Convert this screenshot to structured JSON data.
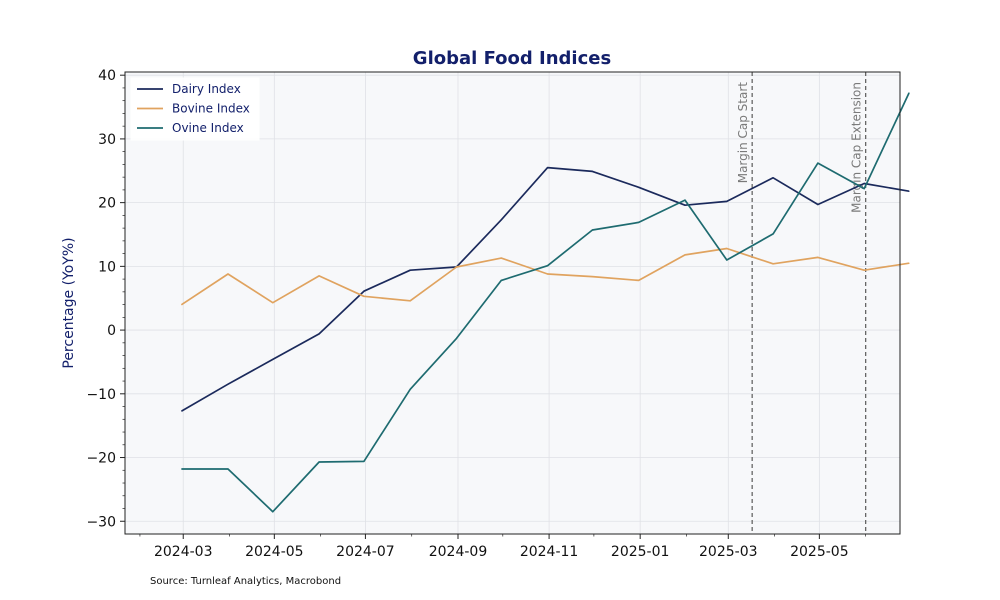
{
  "chart_data": {
    "type": "line",
    "title": "Global Food Indices",
    "xlabel": "",
    "ylabel": "Percentage (YoY%)",
    "x": [
      "2024-02",
      "2024-03",
      "2024-04",
      "2024-05",
      "2024-06",
      "2024-07",
      "2024-08",
      "2024-09",
      "2024-10",
      "2024-11",
      "2024-12",
      "2025-01",
      "2025-02",
      "2025-03",
      "2025-04",
      "2025-05",
      "2025-06"
    ],
    "series": [
      {
        "name": "Dairy Index",
        "color": "#1b2a5c",
        "values": [
          -12.7,
          -8.5,
          -4.6,
          -0.6,
          6.1,
          9.4,
          9.9,
          17.3,
          25.5,
          24.9,
          22.4,
          19.6,
          20.2,
          23.9,
          19.7,
          23.0,
          21.8
        ]
      },
      {
        "name": "Bovine Index",
        "color": "#e0a35f",
        "values": [
          4.0,
          8.8,
          4.3,
          8.5,
          5.3,
          4.6,
          9.9,
          11.3,
          8.8,
          8.4,
          7.8,
          11.8,
          12.8,
          10.4,
          11.4,
          9.4,
          10.5
        ]
      },
      {
        "name": "Ovine Index",
        "color": "#1e6b70",
        "values": [
          -21.8,
          -21.8,
          -28.5,
          -20.7,
          -20.6,
          -9.3,
          -1.3,
          7.8,
          10.1,
          15.7,
          16.9,
          20.4,
          11.0,
          15.1,
          26.2,
          22.2,
          37.2
        ]
      }
    ],
    "xticks": [
      "2024-03",
      "2024-05",
      "2024-07",
      "2024-09",
      "2024-11",
      "2025-01",
      "2025-03",
      "2025-05"
    ],
    "yticks": [
      40,
      30,
      20,
      10,
      0,
      -10,
      -20,
      -30
    ],
    "ylim": [
      -32,
      40.5
    ],
    "xlim": [
      "2024-01-22",
      "2025-06-24"
    ],
    "grid": true,
    "legend_position": "top-left",
    "annotations": [
      {
        "label": "Margin Cap Start",
        "date": "2025-03-17"
      },
      {
        "label": "Margin Cap Extension",
        "date": "2025-06-01"
      }
    ],
    "source": "Source: Turnleaf Analytics, Macrobond"
  }
}
